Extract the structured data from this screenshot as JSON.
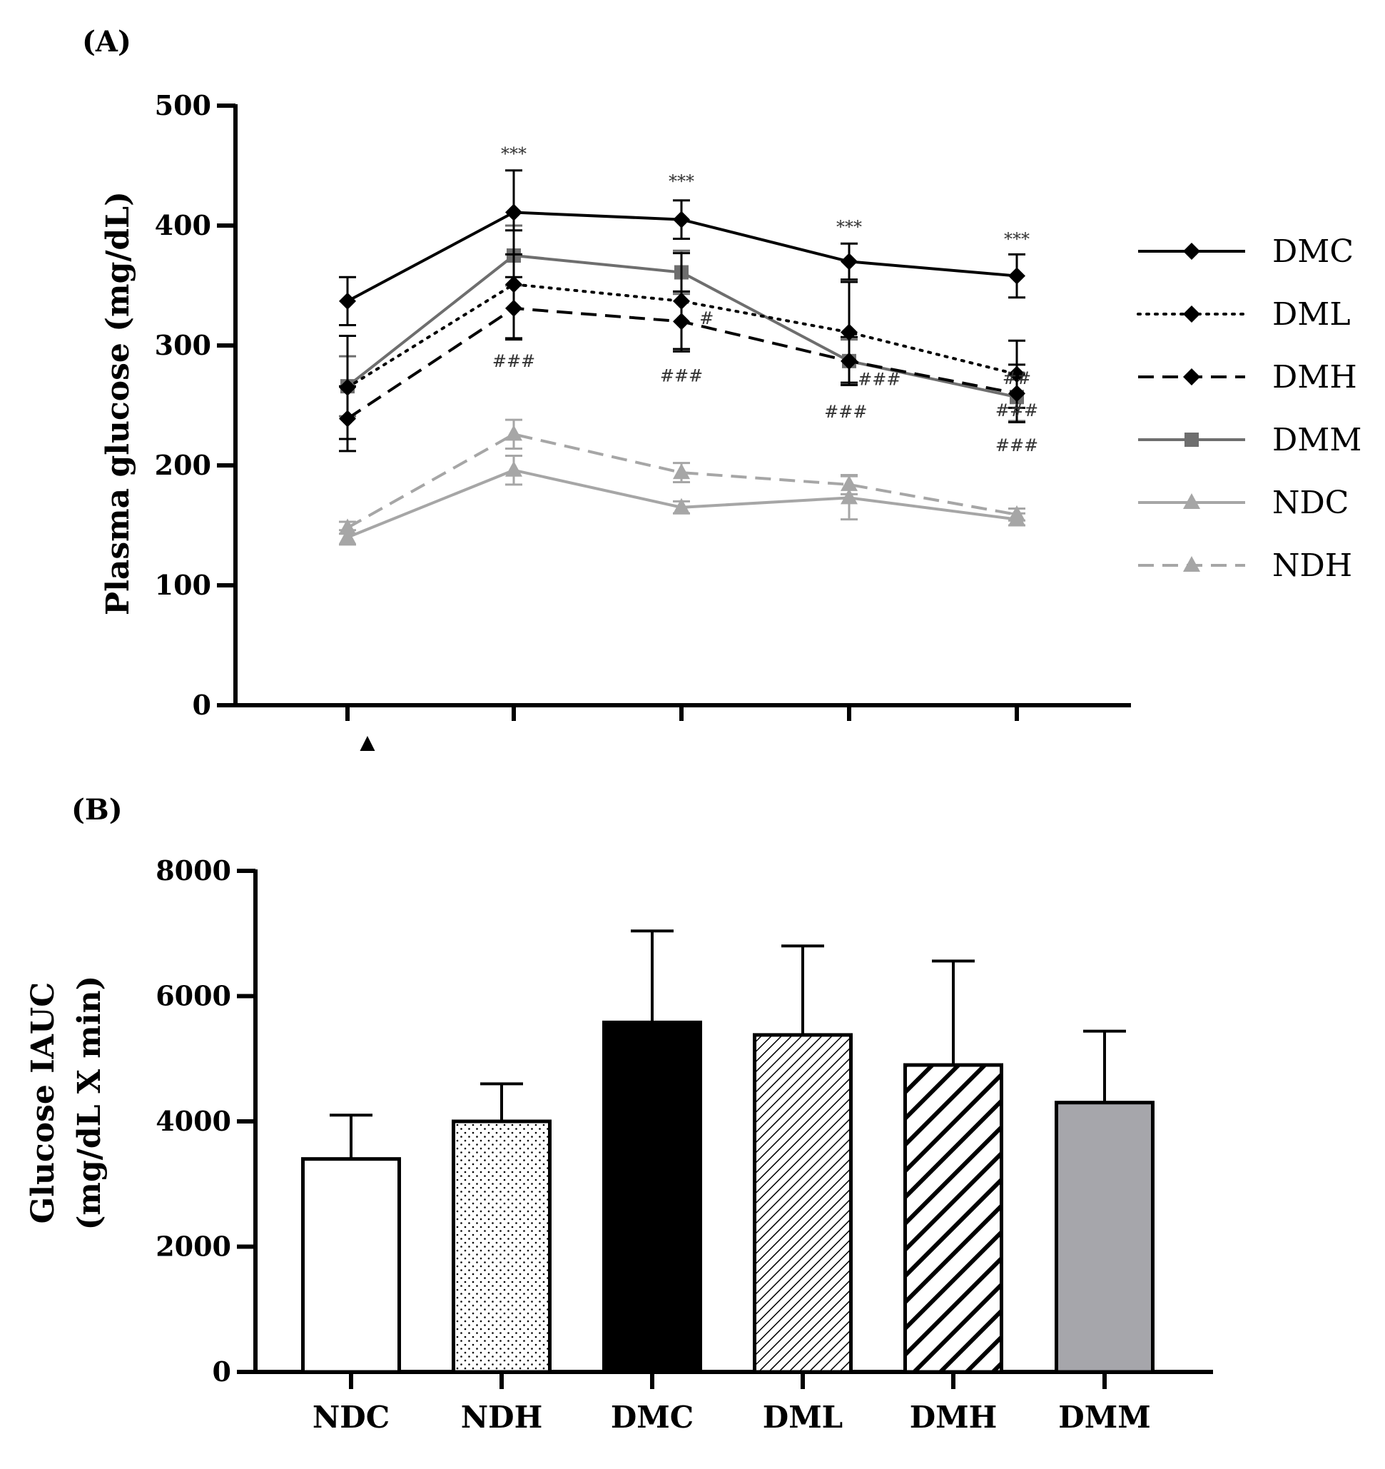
{
  "chart_data": [
    {
      "type": "line",
      "panel_label": "(A)",
      "ylabel": "Plasma glucose (mg/dL)",
      "ylim": [
        0,
        500
      ],
      "yticks": [
        0,
        100,
        200,
        300,
        400,
        500
      ],
      "xlabel": "",
      "x": [
        0,
        1,
        2,
        3,
        4
      ],
      "x_tick_labels_note": "x-axis tick labels cut off in image",
      "marker": "▲",
      "series": [
        {
          "name": "DMC",
          "color": "#000000",
          "dash": "solid",
          "marker": "diamond",
          "values": [
            337,
            411,
            405,
            370,
            358
          ],
          "errors": [
            20,
            35,
            16,
            15,
            18
          ]
        },
        {
          "name": "DML",
          "color": "#000000",
          "dash": "dotted",
          "marker": "diamond",
          "values": [
            265,
            351,
            337,
            311,
            276
          ],
          "errors": [
            43,
            45,
            40,
            42,
            28
          ]
        },
        {
          "name": "DMH",
          "color": "#000000",
          "dash": "dashed",
          "marker": "diamond",
          "values": [
            239,
            331,
            320,
            287,
            260
          ],
          "errors": [
            27,
            26,
            25,
            20,
            24
          ]
        },
        {
          "name": "DMM",
          "color": "#6e6e6e",
          "dash": "solid",
          "marker": "square",
          "values": [
            266,
            375,
            361,
            287,
            257
          ],
          "errors": [
            25,
            25,
            18,
            18,
            20
          ]
        },
        {
          "name": "NDC",
          "color": "#a6a6a6",
          "dash": "solid",
          "marker": "triangle",
          "values": [
            140,
            196,
            165,
            173,
            155
          ],
          "errors": [
            6,
            12,
            5,
            18,
            5
          ]
        },
        {
          "name": "NDH",
          "color": "#a6a6a6",
          "dash": "dashed",
          "marker": "triangle",
          "values": [
            148,
            226,
            194,
            184,
            159
          ],
          "errors": [
            5,
            12,
            8,
            8,
            5
          ]
        }
      ],
      "annotations": [
        {
          "text": "***",
          "x": 1,
          "y": 455
        },
        {
          "text": "***",
          "x": 2,
          "y": 432
        },
        {
          "text": "***",
          "x": 3,
          "y": 394
        },
        {
          "text": "***",
          "x": 4,
          "y": 384
        },
        {
          "text": "###",
          "x": 1,
          "y": 282
        },
        {
          "text": "###",
          "x": 2,
          "y": 270
        },
        {
          "text": "#",
          "x": 2.15,
          "y": 318
        },
        {
          "text": "###",
          "x": 3.18,
          "y": 267
        },
        {
          "text": "###",
          "x": 2.98,
          "y": 240
        },
        {
          "text": "##",
          "x": 4.23,
          "y": 268
        },
        {
          "text": "###",
          "x": 4.23,
          "y": 241
        },
        {
          "text": "###",
          "x": 4.0,
          "y": 212
        }
      ]
    },
    {
      "type": "bar",
      "panel_label": "(B)",
      "ylabel": "Glucose IAUC",
      "ylabel2": "(mg/dL X min)",
      "ylim": [
        0,
        8000
      ],
      "yticks": [
        0,
        2000,
        4000,
        6000,
        8000
      ],
      "categories": [
        "NDC",
        "NDH",
        "DMC",
        "DML",
        "DMH",
        "DMM"
      ],
      "values": [
        3400,
        4000,
        5580,
        5380,
        4900,
        4300
      ],
      "errors": [
        700,
        600,
        1460,
        1420,
        1660,
        1140
      ],
      "fills": [
        "white",
        "dots",
        "black",
        "hatch-thin",
        "hatch-thick",
        "gray"
      ]
    }
  ]
}
